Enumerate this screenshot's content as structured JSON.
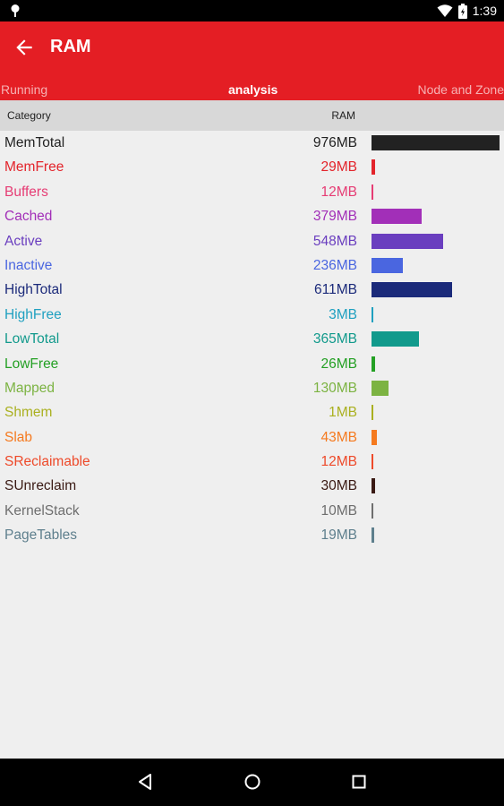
{
  "status_bar": {
    "time": "1:39",
    "icons": [
      "location-pin-icon",
      "wifi-icon",
      "battery-icon"
    ]
  },
  "app_bar": {
    "title": "RAM",
    "back_icon": "arrow-left-icon",
    "color": "#e41e24"
  },
  "tabs": [
    {
      "label": "Running",
      "active": false
    },
    {
      "label": "analysis",
      "active": true
    },
    {
      "label": "Node and Zone",
      "active": false
    }
  ],
  "table": {
    "header": {
      "category": "Category",
      "ram": "RAM"
    },
    "max_mb": 976,
    "rows": [
      {
        "name": "MemTotal",
        "value": "976MB",
        "mb": 976,
        "color": "#222222"
      },
      {
        "name": "MemFree",
        "value": "29MB",
        "mb": 29,
        "color": "#e3242b"
      },
      {
        "name": "Buffers",
        "value": "12MB",
        "mb": 12,
        "color": "#e63c74"
      },
      {
        "name": "Cached",
        "value": "379MB",
        "mb": 379,
        "color": "#a22fb8"
      },
      {
        "name": "Active",
        "value": "548MB",
        "mb": 548,
        "color": "#6a3ebf"
      },
      {
        "name": "Inactive",
        "value": "236MB",
        "mb": 236,
        "color": "#4a66e0"
      },
      {
        "name": "HighTotal",
        "value": "611MB",
        "mb": 611,
        "color": "#1b2a7a"
      },
      {
        "name": "HighFree",
        "value": "3MB",
        "mb": 3,
        "color": "#1fa0c0"
      },
      {
        "name": "LowTotal",
        "value": "365MB",
        "mb": 365,
        "color": "#129a8c"
      },
      {
        "name": "LowFree",
        "value": "26MB",
        "mb": 26,
        "color": "#24a024"
      },
      {
        "name": "Mapped",
        "value": "130MB",
        "mb": 130,
        "color": "#7cb342"
      },
      {
        "name": "Shmem",
        "value": "1MB",
        "mb": 1,
        "color": "#aab01f"
      },
      {
        "name": "Slab",
        "value": "43MB",
        "mb": 43,
        "color": "#f57a1f"
      },
      {
        "name": "SReclaimable",
        "value": "12MB",
        "mb": 12,
        "color": "#ee4a2a"
      },
      {
        "name": "SUnreclaim",
        "value": "30MB",
        "mb": 30,
        "color": "#3a1a14"
      },
      {
        "name": "KernelStack",
        "value": "10MB",
        "mb": 10,
        "color": "#6e6e6e"
      },
      {
        "name": "PageTables",
        "value": "19MB",
        "mb": 19,
        "color": "#5e7f8d"
      }
    ]
  },
  "nav_bar": {
    "icons": [
      "nav-back-icon",
      "nav-home-icon",
      "nav-recent-icon"
    ]
  }
}
